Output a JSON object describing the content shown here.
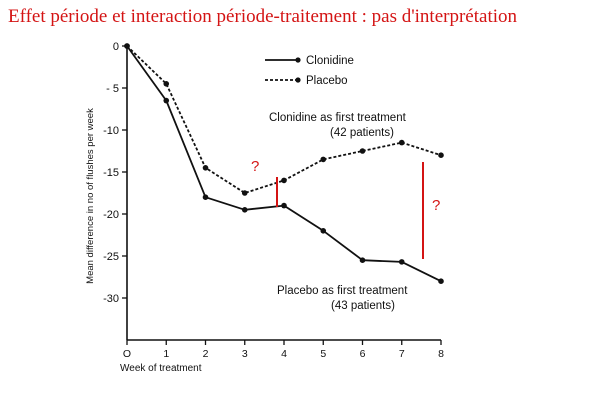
{
  "slide": {
    "title": "Effet période et interaction période-traitement : pas d'interprétation"
  },
  "chart_data": {
    "type": "line",
    "xlabel": "Week of treatment",
    "ylabel": "Mean difference in no of flushes per week",
    "x": [
      0,
      1,
      2,
      3,
      4,
      5,
      6,
      7,
      8
    ],
    "xticks": [
      "O",
      "1",
      "2",
      "3",
      "4",
      "5",
      "6",
      "7",
      "8"
    ],
    "yticks": [
      0,
      -5,
      -10,
      -15,
      -20,
      -25,
      -30
    ],
    "ytick_labels": [
      "0",
      "- 5",
      "-10",
      "-15",
      "-20",
      "-25",
      "-30"
    ],
    "xlim": [
      0,
      8
    ],
    "ylim": [
      -35,
      0
    ],
    "grid": false,
    "legend": "top-right",
    "series": [
      {
        "name": "Clonidine",
        "style": "solid",
        "values": [
          0,
          -6.5,
          -18,
          -19.5,
          -19,
          -22,
          -25.5,
          -25.7,
          -28
        ]
      },
      {
        "name": "Placebo",
        "style": "dashed",
        "values": [
          0,
          -4.5,
          -14.5,
          -17.5,
          -16,
          -13.5,
          -12.5,
          -11.5,
          -13
        ]
      }
    ],
    "annotations": [
      {
        "text": "Clonidine as first treatment",
        "note": "(42 patients)"
      },
      {
        "text": "Placebo as first treatment",
        "note": "(43 patients)"
      }
    ],
    "markers": [
      {
        "text": "?",
        "color": "#d41414"
      },
      {
        "text": "?",
        "color": "#d41414"
      }
    ]
  }
}
